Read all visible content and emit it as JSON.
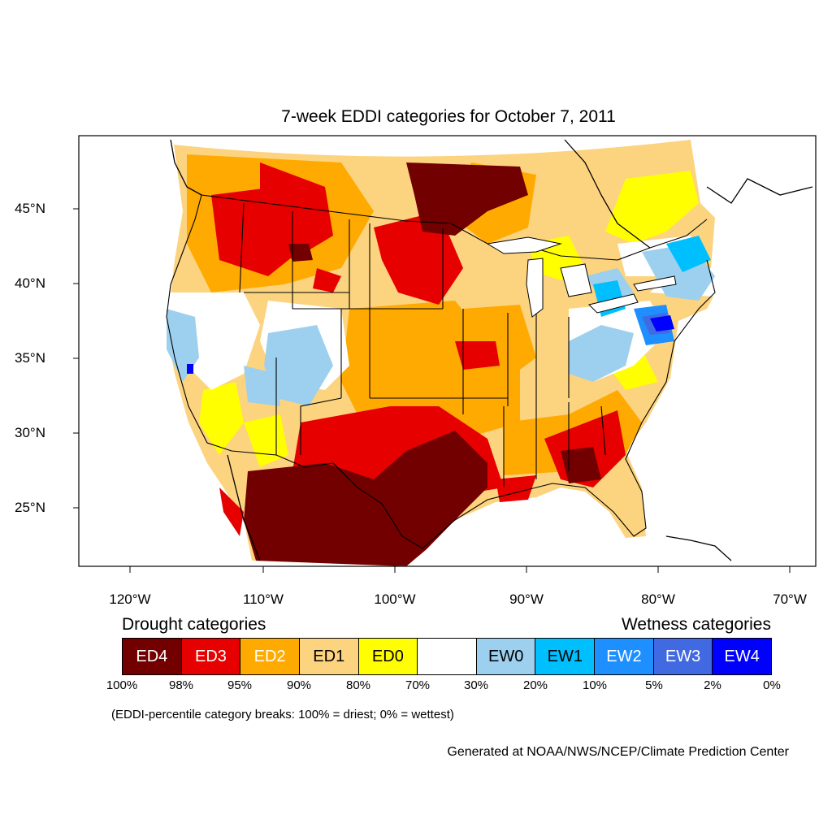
{
  "title": "7-week EDDI categories for October 7, 2011",
  "lat_labels": [
    "45°N",
    "40°N",
    "35°N",
    "30°N",
    "25°N"
  ],
  "lon_labels": [
    "120°W",
    "110°W",
    "100°W",
    "90°W",
    "80°W",
    "70°W"
  ],
  "legend": {
    "drought_heading": "Drought categories",
    "wetness_heading": "Wetness categories",
    "categories": [
      {
        "label": "ED4",
        "color": "#730000",
        "text_color": "#ffffff"
      },
      {
        "label": "ED3",
        "color": "#e60000",
        "text_color": "#ffffff"
      },
      {
        "label": "ED2",
        "color": "#ffaa00",
        "text_color": "#ffffff"
      },
      {
        "label": "ED1",
        "color": "#fcd37f",
        "text_color": "#000000"
      },
      {
        "label": "ED0",
        "color": "#ffff00",
        "text_color": "#000000"
      },
      {
        "label": "",
        "color": "#ffffff",
        "text_color": "#000000"
      },
      {
        "label": "EW0",
        "color": "#9dd0ee",
        "text_color": "#000000"
      },
      {
        "label": "EW1",
        "color": "#00bfff",
        "text_color": "#000000"
      },
      {
        "label": "EW2",
        "color": "#1e8fff",
        "text_color": "#ffffff"
      },
      {
        "label": "EW3",
        "color": "#4169e1",
        "text_color": "#ffffff"
      },
      {
        "label": "EW4",
        "color": "#0000ff",
        "text_color": "#ffffff"
      }
    ],
    "tick_labels": [
      "100%",
      "98%",
      "95%",
      "90%",
      "80%",
      "70%",
      "30%",
      "20%",
      "10%",
      "5%",
      "2%",
      "0%"
    ]
  },
  "breaks_note": "(EDDI-percentile category breaks: 100% = driest; 0% = wettest)",
  "credit": "Generated at NOAA/NWS/NCEP/Climate Prediction Center"
}
